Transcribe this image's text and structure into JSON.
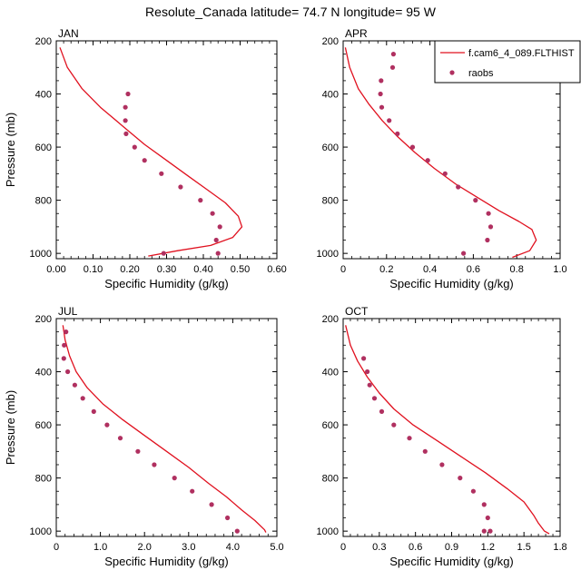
{
  "title": "Resolute_Canada  latitude= 74.7 N longitude= 95 W",
  "colors": {
    "model": "#e0111f",
    "obs": "#b03060",
    "axis": "#000000"
  },
  "legend": {
    "model_label": "f.cam6_4_089.FLTHIST",
    "obs_label": "raobs",
    "location": "top-right of APR panel"
  },
  "chart_data": [
    {
      "type": "line",
      "panel": "JAN",
      "xlabel": "Specific Humidity (g/kg)",
      "ylabel": "Pressure (mb)",
      "xlim": [
        0,
        0.6
      ],
      "ylim": [
        1020,
        200
      ],
      "xticks": [
        "0.00",
        "0.10",
        "0.20",
        "0.30",
        "0.40",
        "0.50",
        "0.60"
      ],
      "yticks": [
        "200",
        "400",
        "600",
        "800",
        "1000"
      ],
      "series": [
        {
          "name": "f.cam6_4_089.FLTHIST",
          "x": [
            0.01,
            0.03,
            0.07,
            0.12,
            0.18,
            0.24,
            0.3,
            0.36,
            0.41,
            0.46,
            0.495,
            0.505,
            0.48,
            0.42,
            0.33,
            0.25
          ],
          "y": [
            225,
            300,
            380,
            450,
            520,
            590,
            650,
            710,
            760,
            810,
            860,
            900,
            940,
            970,
            990,
            1010
          ]
        },
        {
          "name": "raobs",
          "x": [
            0.195,
            0.188,
            0.188,
            0.19,
            0.213,
            0.24,
            0.286,
            0.338,
            0.392,
            0.425,
            0.445,
            0.435,
            0.44,
            0.292
          ],
          "y": [
            400,
            450,
            500,
            550,
            600,
            650,
            700,
            750,
            800,
            850,
            900,
            950,
            1000,
            1000
          ]
        }
      ]
    },
    {
      "type": "line",
      "panel": "APR",
      "xlabel": "Specific Humidity (g/kg)",
      "ylabel": "",
      "xlim": [
        0,
        1.0
      ],
      "ylim": [
        1020,
        200
      ],
      "xticks": [
        "0",
        "0.2",
        "0.4",
        "0.6",
        "0.8",
        "1.0"
      ],
      "yticks": [
        "200",
        "400",
        "600",
        "800",
        "1000"
      ],
      "series": [
        {
          "name": "f.cam6_4_089.FLTHIST",
          "x": [
            0.01,
            0.03,
            0.07,
            0.12,
            0.18,
            0.25,
            0.33,
            0.42,
            0.52,
            0.62,
            0.72,
            0.81,
            0.87,
            0.89,
            0.86,
            0.78
          ],
          "y": [
            225,
            300,
            380,
            440,
            500,
            560,
            620,
            680,
            740,
            790,
            840,
            880,
            910,
            950,
            990,
            1015
          ]
        },
        {
          "name": "raobs",
          "x": [
            0.232,
            0.228,
            0.175,
            0.172,
            0.178,
            0.212,
            0.25,
            0.32,
            0.39,
            0.47,
            0.53,
            0.61,
            0.67,
            0.68,
            0.665,
            0.555
          ],
          "y": [
            250,
            300,
            350,
            400,
            450,
            500,
            550,
            600,
            650,
            700,
            750,
            800,
            850,
            900,
            950,
            1000
          ]
        }
      ]
    },
    {
      "type": "line",
      "panel": "JUL",
      "xlabel": "Specific Humidity (g/kg)",
      "ylabel": "Pressure (mb)",
      "xlim": [
        0,
        5.0
      ],
      "ylim": [
        1020,
        200
      ],
      "xticks": [
        "0",
        "1.0",
        "2.0",
        "3.0",
        "4.0",
        "5.0"
      ],
      "yticks": [
        "200",
        "400",
        "600",
        "800",
        "1000"
      ],
      "series": [
        {
          "name": "f.cam6_4_089.FLTHIST",
          "x": [
            0.15,
            0.2,
            0.3,
            0.45,
            0.7,
            1.05,
            1.5,
            2.0,
            2.5,
            3.0,
            3.45,
            3.85,
            4.2,
            4.5,
            4.72,
            4.75
          ],
          "y": [
            225,
            280,
            340,
            400,
            460,
            520,
            580,
            640,
            700,
            760,
            820,
            870,
            920,
            960,
            995,
            1005
          ]
        },
        {
          "name": "raobs",
          "x": [
            0.22,
            0.18,
            0.17,
            0.26,
            0.42,
            0.6,
            0.85,
            1.15,
            1.45,
            1.85,
            2.22,
            2.68,
            3.08,
            3.52,
            3.88,
            4.1
          ],
          "y": [
            250,
            300,
            350,
            400,
            450,
            500,
            550,
            600,
            650,
            700,
            750,
            800,
            850,
            900,
            950,
            1000
          ]
        }
      ]
    },
    {
      "type": "line",
      "panel": "OCT",
      "xlabel": "Specific Humidity (g/kg)",
      "ylabel": "",
      "xlim": [
        0,
        1.8
      ],
      "ylim": [
        1020,
        200
      ],
      "xticks": [
        "0",
        "0.3",
        "0.6",
        "0.9",
        "1.2",
        "1.5",
        "1.8"
      ],
      "yticks": [
        "200",
        "400",
        "600",
        "800",
        "1000"
      ],
      "series": [
        {
          "name": "f.cam6_4_089.FLTHIST",
          "x": [
            0.02,
            0.06,
            0.12,
            0.2,
            0.3,
            0.42,
            0.58,
            0.78,
            0.98,
            1.18,
            1.36,
            1.5,
            1.58,
            1.62,
            1.67,
            1.71
          ],
          "y": [
            225,
            300,
            360,
            420,
            480,
            540,
            600,
            660,
            720,
            780,
            840,
            890,
            940,
            970,
            1000,
            1010
          ]
        },
        {
          "name": "raobs",
          "x": [
            0.17,
            0.2,
            0.22,
            0.26,
            0.32,
            0.42,
            0.55,
            0.68,
            0.82,
            0.97,
            1.08,
            1.17,
            1.2,
            1.22,
            1.17
          ],
          "y": [
            350,
            400,
            450,
            500,
            550,
            600,
            650,
            700,
            750,
            800,
            850,
            900,
            950,
            1000,
            1000
          ]
        }
      ]
    }
  ]
}
